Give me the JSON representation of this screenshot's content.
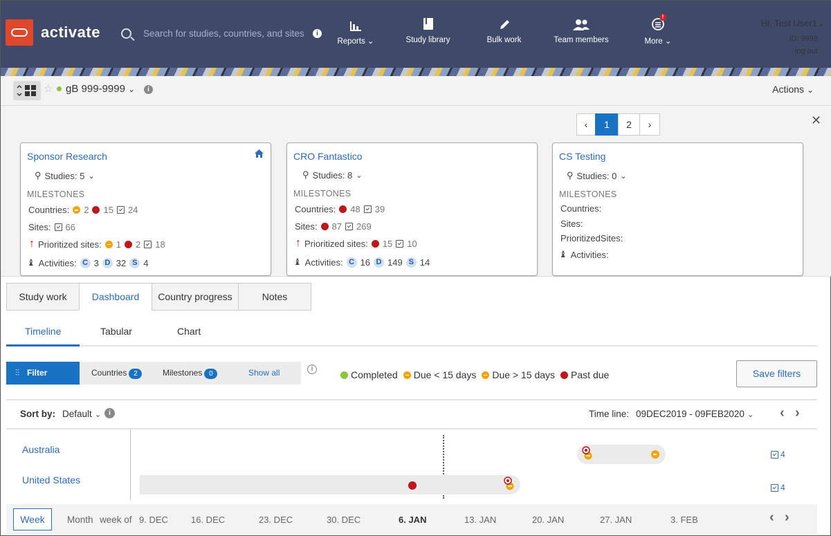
{
  "header": {
    "brand": "activate",
    "search_placeholder": "Search for studies, countries, and sites",
    "info_icon": "i",
    "nav": [
      {
        "label": "Reports",
        "icon": "bar-chart-icon"
      },
      {
        "label": "Study library",
        "icon": "book-icon"
      },
      {
        "label": "Bulk work",
        "icon": "pencil-icon"
      },
      {
        "label": "Team members",
        "icon": "users-icon"
      },
      {
        "label": "More",
        "icon": "menu-icon",
        "badge": "!"
      }
    ],
    "user_greeting": "Hi, Test User1",
    "user_id": "ID: 9999",
    "logout": "log out"
  },
  "study_bar": {
    "study_name": "gB 999-9999",
    "actions": "Actions"
  },
  "pager": {
    "prev": "‹",
    "pages": [
      "1",
      "2"
    ],
    "next": "›",
    "current": "1"
  },
  "cards": [
    {
      "title": "Sponsor Research",
      "studies": "Studies: 5",
      "milestones_label": "MILESTONES",
      "countries_label": "Countries:",
      "countries": {
        "due_lt15": "2",
        "past_due": "15",
        "completed": "24"
      },
      "sites_label": "Sites:",
      "sites": {
        "completed": "66"
      },
      "prioritized_label": "Prioritized sites:",
      "prioritized": {
        "due_lt15": "1",
        "past_due": "2",
        "completed": "18"
      },
      "activities_label": "Activities:",
      "activities": {
        "C": "3",
        "D": "32",
        "S": "4"
      }
    },
    {
      "title": "CRO Fantastico",
      "studies": "Studies: 8",
      "milestones_label": "MILESTONES",
      "countries_label": "Countries:",
      "countries": {
        "past_due": "48",
        "completed": "39"
      },
      "sites_label": "Sites:",
      "sites": {
        "past_due": "87",
        "completed": "269"
      },
      "prioritized_label": "Prioritized sites:",
      "prioritized": {
        "past_due": "15",
        "completed": "10"
      },
      "activities_label": "Activities:",
      "activities": {
        "C": "16",
        "D": "149",
        "S": "14"
      }
    },
    {
      "title": "CS Testing",
      "studies": "Studies: 0",
      "milestones_label": "MILESTONES",
      "countries_label": "Countries:",
      "sites_label": "Sites:",
      "prioritized_label": "PrioritizedSites:",
      "activities_label": "Activities:"
    }
  ],
  "tabs": [
    "Study work",
    "Dashboard",
    "Country progress",
    "Notes"
  ],
  "active_tab": "Dashboard",
  "subtabs": [
    "Timeline",
    "Tabular",
    "Chart"
  ],
  "active_subtab": "Timeline",
  "filters": {
    "filter_label": "Filter",
    "countries_label": "Countries",
    "countries_count": "2",
    "milestones_label": "Milestones",
    "milestones_count": "0",
    "show_all": "Show all",
    "save_filters": "Save filters"
  },
  "legend": [
    {
      "label": "Completed",
      "color": "#8cc63f"
    },
    {
      "label": "Due < 15 days",
      "color": "#f5a300"
    },
    {
      "label": "Due > 15 days",
      "color": "#f5a300"
    },
    {
      "label": "Past due",
      "color": "#c0161b"
    }
  ],
  "sort": {
    "label": "Sort by:",
    "value": "Default"
  },
  "timeline": {
    "label": "Time line:",
    "range": "09DEC2019 - 09FEB2020"
  },
  "rows": [
    {
      "country": "Australia",
      "count": "4"
    },
    {
      "country": "United States",
      "count": "4"
    }
  ],
  "footer": {
    "week": "Week",
    "month": "Month",
    "week_of": "week of",
    "dates": [
      "9. DEC",
      "16. DEC",
      "23. DEC",
      "30. DEC",
      "6. JAN",
      "13. JAN",
      "20. JAN",
      "27. JAN",
      "3. FEB"
    ],
    "current_date": "6. JAN"
  }
}
